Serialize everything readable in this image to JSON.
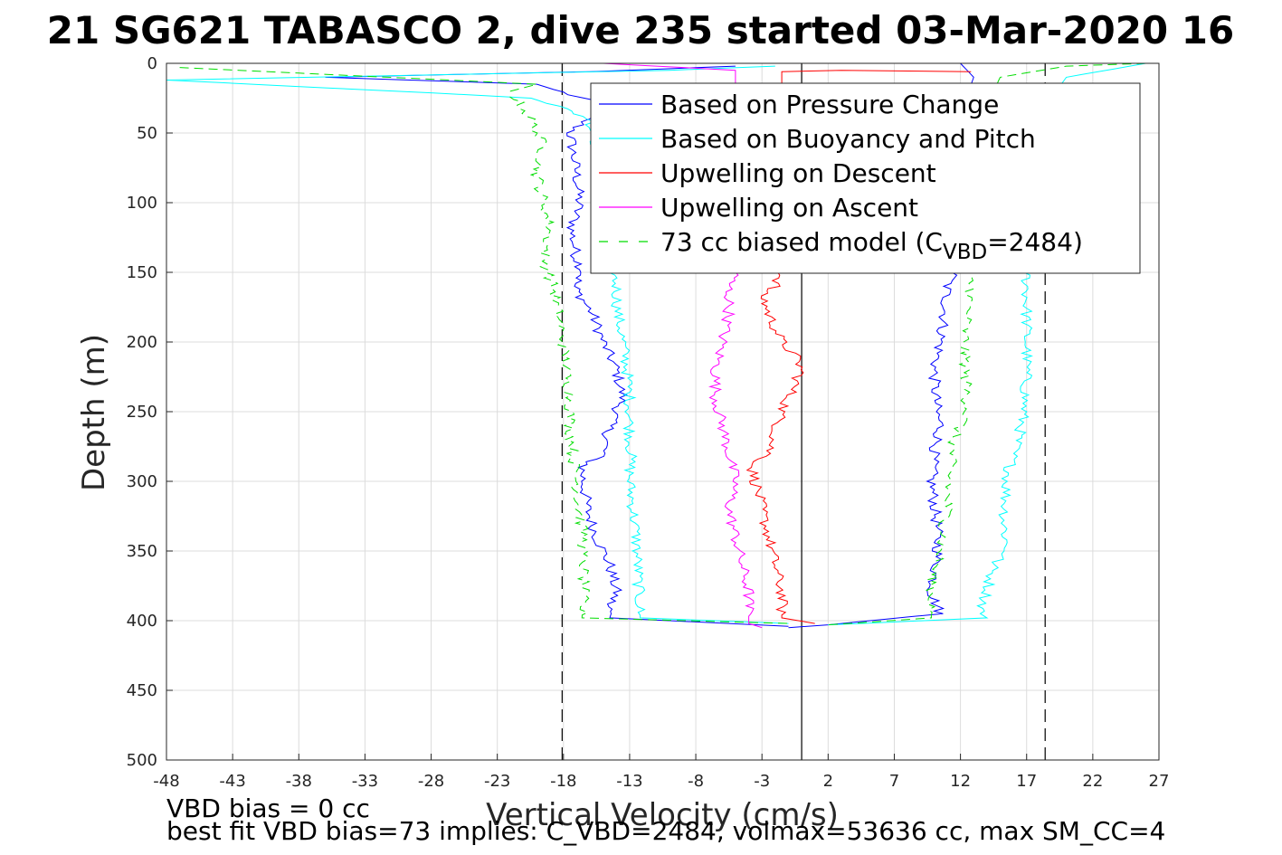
{
  "chart_data": {
    "type": "line",
    "title": "21 SG621 TABASCO 2, dive 235 started 03-Mar-2020 16",
    "xlabel": "Vertical Velocity (cm/s)",
    "ylabel": "Depth (m)",
    "xlim": [
      -48,
      27
    ],
    "ylim": [
      0,
      500
    ],
    "y_reversed": true,
    "grid": true,
    "xticks": [
      -48,
      -43,
      -38,
      -33,
      -28,
      -23,
      -18,
      -13,
      -8,
      -3,
      2,
      7,
      12,
      17,
      22,
      27
    ],
    "yticks": [
      0,
      50,
      100,
      150,
      200,
      250,
      300,
      350,
      400,
      450,
      500
    ],
    "vlines": [
      {
        "x": 0,
        "style": "solid",
        "color": "#000000"
      },
      {
        "x": -18.1,
        "style": "dashed",
        "color": "#000000"
      },
      {
        "x": 18.4,
        "style": "dashed",
        "color": "#000000"
      }
    ],
    "legend": {
      "position": "top-right",
      "entries": [
        {
          "label": "Based on Pressure Change",
          "color": "#0000ff",
          "dash": "solid"
        },
        {
          "label": "Based on Buoyancy and Pitch",
          "color": "#00ffff",
          "dash": "solid"
        },
        {
          "label": "Upwelling on Descent",
          "color": "#ff0000",
          "dash": "solid"
        },
        {
          "label": "Upwelling on Ascent",
          "color": "#ff00ff",
          "dash": "solid"
        },
        {
          "label_pre": "73 cc biased model (C",
          "label_sub": "VBD",
          "label_post": "=2484)",
          "color": "#00dd00",
          "dash": "dashed"
        }
      ]
    },
    "series": [
      {
        "color": "#0000ff",
        "dash": "solid",
        "side": "descent",
        "x": [
          -5,
          -16,
          -36,
          -20,
          -15,
          -17.5,
          -17,
          -16.8,
          -17.4,
          -17,
          -16.5,
          -17.2,
          -15.8,
          -15,
          -14,
          -13.5,
          -14.5,
          -15,
          -16.6,
          -16.5,
          -16.2,
          -15.5,
          -14.5,
          -14,
          -14.6,
          -14.4,
          -14.5,
          -1
        ],
        "y": [
          2,
          6,
          10,
          15,
          30,
          50,
          80,
          100,
          120,
          140,
          150,
          160,
          180,
          200,
          220,
          240,
          260,
          280,
          290,
          300,
          320,
          340,
          360,
          380,
          390,
          395,
          398,
          404
        ]
      },
      {
        "color": "#0000ff",
        "dash": "solid",
        "side": "ascent",
        "x": [
          12,
          13,
          11.5,
          11,
          11.5,
          11,
          10.8,
          10.5,
          10,
          10.2,
          10.5,
          10,
          9.8,
          10.2,
          10.3,
          10,
          9.8,
          10.5,
          2,
          -1
        ],
        "y": [
          0,
          10,
          50,
          100,
          150,
          160,
          180,
          200,
          220,
          250,
          260,
          280,
          300,
          330,
          350,
          370,
          380,
          395,
          403,
          405
        ]
      },
      {
        "color": "#00ffff",
        "dash": "solid",
        "side": "descent",
        "x": [
          -2,
          -10,
          -48,
          -20,
          -16,
          -15.5,
          -15,
          -14.5,
          -14,
          -13.9,
          -13.5,
          -13.2,
          -13,
          -13,
          -12.9,
          -13,
          -12.5,
          -12.3,
          -12.2,
          -1
        ],
        "y": [
          2,
          5,
          12,
          25,
          40,
          60,
          100,
          140,
          160,
          180,
          200,
          220,
          240,
          260,
          280,
          300,
          340,
          380,
          398,
          402
        ]
      },
      {
        "color": "#00ffff",
        "dash": "solid",
        "side": "ascent",
        "x": [
          26,
          20,
          17,
          17,
          17,
          17,
          17,
          16.8,
          16.5,
          16,
          15.5,
          15.3,
          15.5,
          14.5,
          14,
          13.5,
          14,
          2
        ],
        "y": [
          0,
          10,
          50,
          100,
          150,
          200,
          220,
          250,
          265,
          280,
          300,
          330,
          350,
          360,
          380,
          395,
          398,
          403
        ]
      },
      {
        "color": "#ff0000",
        "dash": "solid",
        "side": "descent",
        "x": [
          12.8,
          3,
          -1.5,
          -1.5,
          -1.5,
          -2,
          -3,
          -2.5,
          -1.5,
          -0.5,
          0,
          -1.5,
          -2.5,
          -3.8,
          -3.5,
          -3,
          -2.5,
          -2,
          -1.5,
          -1.5,
          1
        ],
        "y": [
          6,
          5,
          6,
          100,
          150,
          160,
          165,
          180,
          200,
          210,
          220,
          250,
          280,
          290,
          300,
          320,
          340,
          360,
          380,
          398,
          402
        ]
      },
      {
        "color": "#ff00ff",
        "dash": "solid",
        "side": "ascent",
        "x": [
          -15,
          -5,
          -5,
          -5,
          -5.5,
          -5.5,
          -6,
          -6.5,
          -6.5,
          -6,
          -5.5,
          -5,
          -5.5,
          -5,
          -4.5,
          -4,
          -4,
          -4,
          -3
        ],
        "y": [
          0,
          5,
          100,
          150,
          160,
          180,
          200,
          220,
          240,
          260,
          280,
          300,
          320,
          340,
          360,
          380,
          395,
          402,
          405
        ]
      },
      {
        "color": "#00dd00",
        "dash": "dashed",
        "side": "descent",
        "x": [
          -47,
          -20,
          -22,
          -20.5,
          -19.5,
          -20,
          -19.5,
          -19,
          -19.5,
          -18.8,
          -18,
          -17.8,
          -17.5,
          -17.5,
          -17.3,
          -17,
          -16.8,
          -16.5,
          -16.5,
          -16.5,
          -16.6,
          -1
        ],
        "y": [
          3,
          15,
          20,
          40,
          60,
          80,
          100,
          120,
          140,
          160,
          200,
          220,
          240,
          260,
          280,
          300,
          320,
          340,
          360,
          380,
          398,
          402
        ]
      },
      {
        "color": "#00dd00",
        "dash": "dashed",
        "side": "ascent",
        "x": [
          26,
          20,
          15,
          13,
          12.8,
          12.6,
          12.8,
          12.5,
          12.3,
          12.4,
          12.5,
          11.5,
          11.2,
          11,
          10.5,
          10,
          9.8,
          9.8,
          2
        ],
        "y": [
          0,
          2,
          10,
          50,
          100,
          150,
          160,
          180,
          200,
          220,
          250,
          270,
          290,
          320,
          350,
          365,
          380,
          398,
          403
        ]
      }
    ]
  },
  "annotations": {
    "line1": "VBD bias = 0 cc",
    "line2": "best fit VBD bias=73 implies: C_VBD=2484, volmax=53636 cc, max SM_CC=4"
  }
}
